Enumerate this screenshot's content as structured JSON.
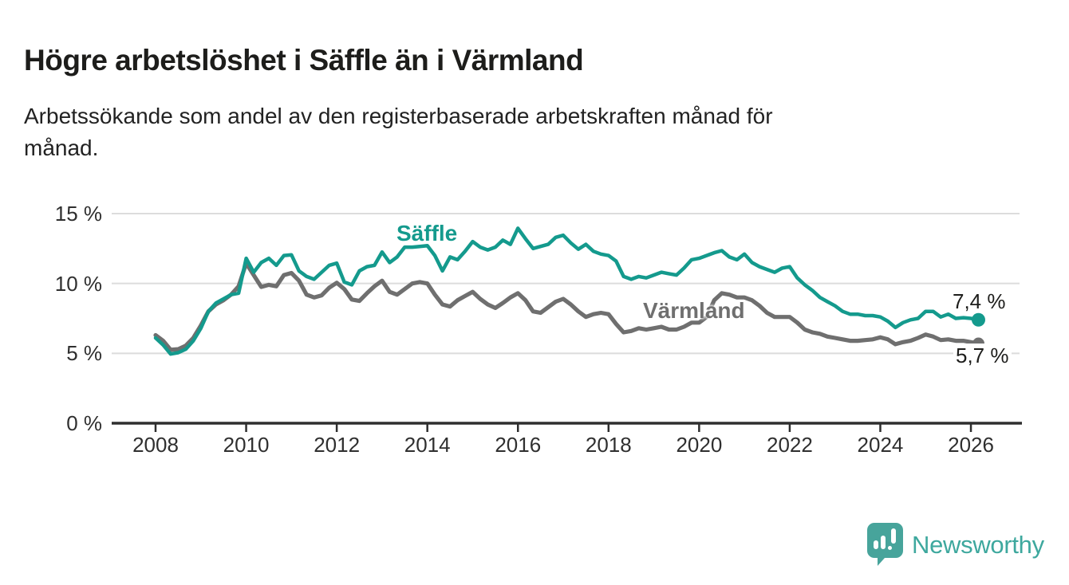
{
  "header": {
    "title": "Högre arbetslöshet i Säffle än i Värmland",
    "subtitle_line1": "Arbetssökande som andel av den registerbaserade arbetskraften månad för",
    "subtitle_line2": "månad."
  },
  "chart_data": {
    "type": "line",
    "unit": "%",
    "title": "Högre arbetslöshet i Säffle än i Värmland",
    "subtitle": "Arbetssökande som andel av den registerbaserade arbetskraften månad för månad.",
    "x_start": 2008.0,
    "x_step_years": 0.166667,
    "x_note": "monthly share estimated at two-month resolution, Jan 2008 - Mar 2026",
    "ylim": [
      0,
      15.8
    ],
    "grid": "horizontal",
    "legend": "inline-labels",
    "background": "#ffffff",
    "gridline_color": "#dcdcdc",
    "axis_color": "#2e2e2e",
    "series": [
      {
        "name": "Säffle",
        "color": "#149a8d",
        "end_value": 7.4,
        "end_label": "7,4 %",
        "values": [
          6.1,
          5.6,
          4.95,
          5.05,
          5.3,
          5.9,
          6.8,
          8.0,
          8.6,
          8.9,
          9.2,
          9.3,
          11.8,
          10.8,
          11.5,
          11.8,
          11.3,
          12.0,
          12.05,
          10.9,
          10.5,
          10.3,
          10.8,
          11.3,
          11.45,
          10.1,
          9.9,
          10.9,
          11.2,
          11.3,
          12.25,
          11.5,
          11.9,
          12.6,
          12.6,
          12.65,
          12.7,
          12.0,
          10.9,
          11.9,
          11.7,
          12.3,
          13.0,
          12.6,
          12.4,
          12.6,
          13.1,
          12.8,
          13.95,
          13.2,
          12.5,
          12.65,
          12.8,
          13.3,
          13.45,
          12.9,
          12.45,
          12.8,
          12.3,
          12.1,
          12.0,
          11.6,
          10.5,
          10.3,
          10.5,
          10.4,
          10.6,
          10.8,
          10.7,
          10.6,
          11.1,
          11.7,
          11.8,
          12.0,
          12.2,
          12.35,
          11.9,
          11.7,
          12.1,
          11.5,
          11.2,
          11.0,
          10.8,
          11.1,
          11.2,
          10.4,
          9.9,
          9.5,
          9.0,
          8.7,
          8.4,
          8.0,
          7.8,
          7.8,
          7.7,
          7.7,
          7.6,
          7.3,
          6.85,
          7.2,
          7.4,
          7.5,
          8.0,
          8.0,
          7.6,
          7.8,
          7.5,
          7.55,
          7.5,
          7.4
        ]
      },
      {
        "name": "Värmland",
        "color": "#6f6f6f",
        "end_value": 5.7,
        "end_label": "5,7 %",
        "values": [
          6.3,
          5.9,
          5.25,
          5.3,
          5.55,
          6.1,
          7.0,
          8.0,
          8.5,
          8.8,
          9.2,
          9.8,
          11.45,
          10.6,
          9.75,
          9.9,
          9.8,
          10.6,
          10.75,
          10.2,
          9.2,
          9.0,
          9.15,
          9.7,
          10.05,
          9.6,
          8.85,
          8.75,
          9.3,
          9.8,
          10.2,
          9.4,
          9.2,
          9.6,
          10.0,
          10.1,
          10.0,
          9.2,
          8.5,
          8.35,
          8.8,
          9.1,
          9.4,
          8.9,
          8.5,
          8.25,
          8.6,
          9.0,
          9.3,
          8.8,
          8.0,
          7.9,
          8.3,
          8.7,
          8.9,
          8.5,
          8.0,
          7.6,
          7.8,
          7.9,
          7.8,
          7.1,
          6.5,
          6.6,
          6.8,
          6.7,
          6.8,
          6.9,
          6.7,
          6.7,
          6.9,
          7.2,
          7.2,
          7.6,
          8.8,
          9.3,
          9.2,
          9.0,
          9.0,
          8.8,
          8.4,
          7.9,
          7.6,
          7.6,
          7.6,
          7.2,
          6.7,
          6.5,
          6.4,
          6.2,
          6.1,
          6.0,
          5.9,
          5.9,
          5.95,
          6.0,
          6.15,
          6.0,
          5.65,
          5.8,
          5.9,
          6.1,
          6.35,
          6.2,
          5.95,
          6.0,
          5.9,
          5.9,
          5.8,
          5.7
        ]
      }
    ],
    "yticks": [
      {
        "value": 0,
        "label": "0 %"
      },
      {
        "value": 5,
        "label": "5 %"
      },
      {
        "value": 10,
        "label": "10 %"
      },
      {
        "value": 15,
        "label": "15 %"
      }
    ],
    "xticks": [
      {
        "year": 2008,
        "label": "2008"
      },
      {
        "year": 2010,
        "label": "2010"
      },
      {
        "year": 2012,
        "label": "2012"
      },
      {
        "year": 2014,
        "label": "2014"
      },
      {
        "year": 2016,
        "label": "2016"
      },
      {
        "year": 2018,
        "label": "2018"
      },
      {
        "year": 2020,
        "label": "2020"
      },
      {
        "year": 2022,
        "label": "2022"
      },
      {
        "year": 2024,
        "label": "2024"
      },
      {
        "year": 2026,
        "label": "2026"
      }
    ]
  },
  "footer": {
    "brand": "Newsworthy",
    "brand_color": "#3ea89e",
    "logo_icon": "speech-bubble-bar-chart-exclamation"
  }
}
